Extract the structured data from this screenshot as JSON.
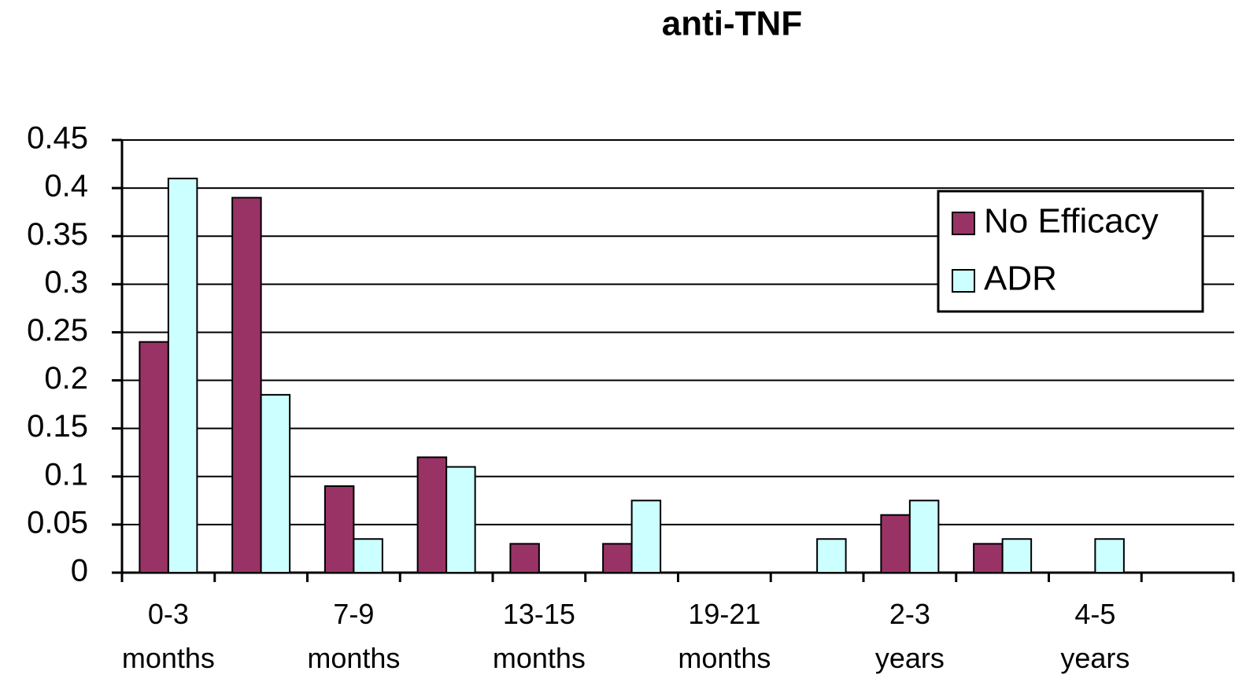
{
  "chart_data": {
    "type": "bar",
    "title": "anti-TNF",
    "categories": [
      "0-3 months",
      null,
      "7-9 months",
      null,
      "13-15 months",
      null,
      "19-21 months",
      null,
      "2-3 years",
      null,
      "4-5 years",
      null
    ],
    "series": [
      {
        "name": "No Efficacy",
        "color": "#993366",
        "values": [
          0.24,
          0.39,
          0.09,
          0.12,
          0.03,
          0.03,
          0,
          0,
          0.06,
          0.03,
          0,
          0
        ]
      },
      {
        "name": "ADR",
        "color": "#ccffff",
        "values": [
          0.41,
          0.185,
          0.035,
          0.11,
          0,
          0.075,
          0,
          0.035,
          0.075,
          0.035,
          0.035,
          0
        ]
      }
    ],
    "ylim": [
      0,
      0.45
    ],
    "yticks": [
      0,
      0.05,
      0.1,
      0.15,
      0.2,
      0.25,
      0.3,
      0.35,
      0.4,
      0.45
    ],
    "grid": true,
    "legend": "upper right"
  }
}
